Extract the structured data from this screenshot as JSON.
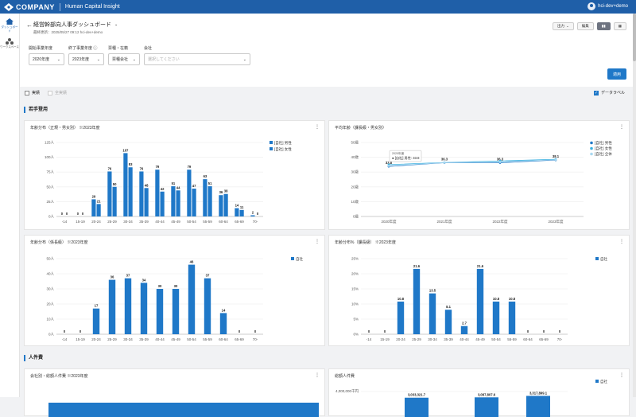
{
  "app": {
    "brand": "COMPANY",
    "product": "Human Capital Insight",
    "user": "hci-dev+demo"
  },
  "nav": [
    {
      "label": "ダッシュボード"
    },
    {
      "label": "ワークスペース"
    }
  ],
  "header": {
    "title": "経営幹部向人事ダッシュボード",
    "subline": "最終更新：2025/05/27 09:12  hci-dev+demo",
    "export": "出力",
    "edit": "編集"
  },
  "filters": [
    {
      "label": "開始事業年度",
      "value": "2020年度"
    },
    {
      "label": "終了事業年度",
      "value": "2023年度"
    },
    {
      "label": "票種・在籍",
      "value": "票種会社"
    },
    {
      "label": "会社",
      "placeholder": "選択してください"
    }
  ],
  "apply": "適用",
  "checks": {
    "actual": "実績",
    "all": "全実績",
    "datalabel": "データラベル"
  },
  "sections": {
    "s1": "若手登用",
    "s2": "人件費"
  },
  "cards": {
    "c1": "年齢分布（正規・男女別） ※2023年度",
    "c2": "平均年齢（課長級・男女別）",
    "c3": "年齢分布（係長級） ※2023年度",
    "c4": "年齢分布%（課長級） ※2023年度",
    "c5": "会社別・総額人件費 ※2023年度",
    "c6": "総額人件費"
  },
  "chart_data": [
    {
      "type": "bar",
      "title": "年齢分布（正規・男女別） ※2023年度",
      "categories": [
        "-14",
        "15-19",
        "20-24",
        "25-29",
        "30-34",
        "35-39",
        "40-44",
        "45-49",
        "50-54",
        "55-59",
        "60-64",
        "65-69",
        "70-"
      ],
      "yticks": [
        "0人",
        "25人",
        "50人",
        "75人",
        "100人",
        "125人"
      ],
      "ylim": [
        0,
        125
      ],
      "series": [
        {
          "name": "[自社] 男性",
          "color": "#1f78c8",
          "values": [
            0,
            0,
            29,
            76,
            107,
            76,
            79,
            51,
            79,
            63,
            36,
            14,
            2
          ]
        },
        {
          "name": "[自社] 女性",
          "color": "#1f78c8",
          "values": [
            0,
            0,
            21,
            50,
            83,
            48,
            42,
            44,
            47,
            51,
            38,
            11,
            0
          ]
        }
      ]
    },
    {
      "type": "line",
      "title": "平均年齢（課長級・男女別）",
      "categories": [
        "2020年度",
        "2021年度",
        "2022年度",
        "2023年度"
      ],
      "yticks": [
        "0歳",
        "10歳",
        "20歳",
        "30歳",
        "40歳",
        "50歳"
      ],
      "ylim": [
        0,
        50
      ],
      "series": [
        {
          "name": "[自社] 男性",
          "color": "#1f78c8",
          "values": [
            33.8,
            36.3,
            36.3,
            38.1
          ]
        },
        {
          "name": "[自社] 女性",
          "color": "#3ab0e0",
          "values": [
            35.0,
            36.5,
            37.5,
            38.6
          ]
        },
        {
          "name": "[自社] 全体",
          "color": "#a9d8f0",
          "values": [
            34.2,
            36.4,
            36.8,
            38.3
          ]
        }
      ],
      "tooltip": {
        "title": "2020年度",
        "text": "● [自社] 男性: 33.8"
      }
    },
    {
      "type": "bar",
      "title": "年齢分布（係長級） ※2023年度",
      "categories": [
        "-14",
        "15-19",
        "20-24",
        "25-29",
        "30-34",
        "35-39",
        "40-44",
        "45-49",
        "50-54",
        "55-59",
        "60-64",
        "65-69",
        "70-"
      ],
      "yticks": [
        "0人",
        "10人",
        "20人",
        "30人",
        "40人",
        "50人"
      ],
      "ylim": [
        0,
        50
      ],
      "series": [
        {
          "name": "自社",
          "color": "#1f78c8",
          "values": [
            0,
            0,
            17,
            36,
            37,
            34,
            30,
            30,
            46,
            37,
            14,
            0,
            0
          ]
        }
      ]
    },
    {
      "type": "bar",
      "title": "年齢分布%（課長級） ※2023年度",
      "categories": [
        "-14",
        "15-19",
        "20-24",
        "25-29",
        "30-34",
        "35-39",
        "40-44",
        "45-49",
        "50-54",
        "55-59",
        "60-64",
        "65-69",
        "70-"
      ],
      "yticks": [
        "0%",
        "5%",
        "10%",
        "15%",
        "20%",
        "25%"
      ],
      "ylim": [
        0,
        25
      ],
      "series": [
        {
          "name": "自社",
          "color": "#1f78c8",
          "values": [
            0,
            0,
            10.8,
            21.6,
            13.5,
            8.1,
            2.7,
            21.6,
            10.8,
            10.8,
            0,
            0,
            0
          ]
        }
      ]
    },
    {
      "type": "bar",
      "title": "総額人件費",
      "yticks": [
        "4,000,000千円"
      ],
      "series": [
        {
          "name": "自社",
          "color": "#1f78c8",
          "values": [
            3033321.7,
            3087807.6,
            3317899.1
          ]
        }
      ]
    }
  ]
}
